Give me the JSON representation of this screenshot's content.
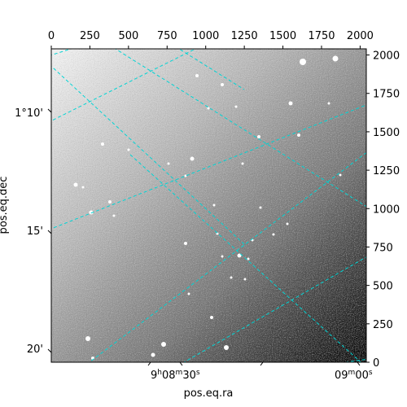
{
  "chart_data": {
    "type": "image",
    "colormap": "gray",
    "grid": "on",
    "grid_color": "#00d4d4",
    "grid_style": "dashed",
    "pixel_axes": {
      "x_range": [
        0,
        2040
      ],
      "y_range": [
        0,
        2040
      ],
      "top_ticks": [
        0,
        250,
        500,
        750,
        1000,
        1250,
        1500,
        1750,
        2000
      ],
      "right_ticks": [
        0,
        250,
        500,
        750,
        1000,
        1250,
        1500,
        1750,
        2000
      ]
    },
    "world_axes": {
      "xlabel": "pos.eq.ra",
      "ylabel": "pos.eq.dec",
      "ra_tick_labels": [
        "9h08m30s",
        "09m00s"
      ],
      "dec_tick_labels": [
        "1°10'",
        "15'",
        "20'"
      ]
    }
  },
  "labels": {
    "top": [
      "0",
      "250",
      "500",
      "750",
      "1000",
      "1250",
      "1500",
      "1750",
      "2000"
    ],
    "right": [
      "0",
      "250",
      "500",
      "750",
      "1000",
      "1250",
      "1500",
      "1750",
      "2000"
    ],
    "dec": [
      "1°10'",
      "15'",
      "20'"
    ],
    "ra_first": {
      "h": "9",
      "hs": "h",
      "m": "08",
      "ms": "m",
      "s": "30",
      "ss": "s"
    },
    "ra_second": {
      "m": "09",
      "ms": "m",
      "s": "00",
      "ss": "s"
    },
    "xlabel": "pos.eq.ra",
    "ylabel": "pos.eq.dec"
  }
}
